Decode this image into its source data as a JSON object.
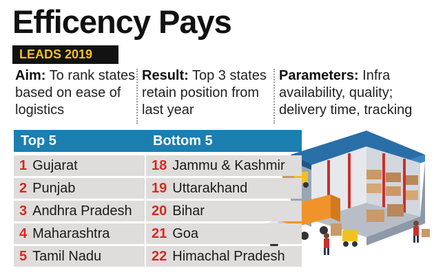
{
  "header": {
    "title": "Efficency Pays",
    "badge": "LEADS 2019"
  },
  "columns": [
    {
      "heading": "Aim:",
      "text": " To rank states based on ease of logistics"
    },
    {
      "heading": "Result:",
      "text": " Top 3 states retain position from last year"
    },
    {
      "heading": "Parameters:",
      "text": " Infra availability, quality; delivery time, tracking"
    }
  ],
  "table": {
    "top_header": "Top 5",
    "bottom_header": "Bottom 5",
    "rows": [
      {
        "top_rank": "1",
        "top_state": "Gujarat",
        "bottom_rank": "18",
        "bottom_state": "Jammu & Kashmir"
      },
      {
        "top_rank": "2",
        "top_state": "Punjab",
        "bottom_rank": "19",
        "bottom_state": "Uttarakhand"
      },
      {
        "top_rank": "3",
        "top_state": "Andhra Pradesh",
        "bottom_rank": "20",
        "bottom_state": "Bihar"
      },
      {
        "top_rank": "4",
        "top_state": "Maharashtra",
        "bottom_rank": "21",
        "bottom_state": "Goa"
      },
      {
        "top_rank": "5",
        "top_state": "Tamil Nadu",
        "bottom_rank": "22",
        "bottom_state": "Himachal Pradesh"
      }
    ]
  },
  "colors": {
    "header_bar": "#1b7fb0",
    "rank_red": "#d42a20",
    "badge_yellow": "#f2c11f",
    "row_gray": "#dfdcdc"
  },
  "illustration": "warehouse-logistics-illustration"
}
